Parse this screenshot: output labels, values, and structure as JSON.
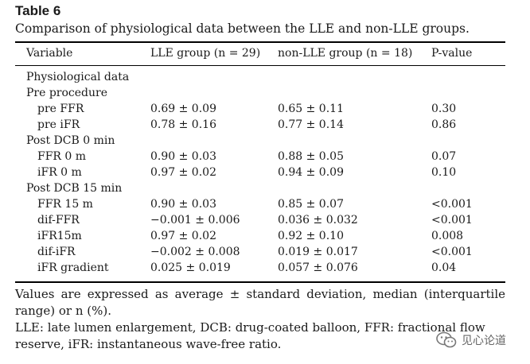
{
  "table": {
    "label": "Table 6",
    "caption": "Comparison of physiological data between the LLE and non-LLE groups.",
    "headers": [
      "Variable",
      "LLE group (n = 29)",
      "non-LLE group (n = 18)",
      "P-value"
    ],
    "rows": [
      {
        "variable": "Physiological data",
        "indent": false,
        "lle": "",
        "nonlle": "",
        "p": ""
      },
      {
        "variable": "Pre procedure",
        "indent": false,
        "lle": "",
        "nonlle": "",
        "p": ""
      },
      {
        "variable": "pre FFR",
        "indent": true,
        "lle": "0.69 ± 0.09",
        "nonlle": "0.65 ± 0.11",
        "p": "0.30"
      },
      {
        "variable": "pre iFR",
        "indent": true,
        "lle": "0.78 ± 0.16",
        "nonlle": "0.77 ± 0.14",
        "p": "0.86"
      },
      {
        "variable": "Post DCB 0 min",
        "indent": false,
        "lle": "",
        "nonlle": "",
        "p": ""
      },
      {
        "variable": "FFR 0 m",
        "indent": true,
        "lle": "0.90 ± 0.03",
        "nonlle": "0.88 ± 0.05",
        "p": "0.07"
      },
      {
        "variable": "iFR 0 m",
        "indent": true,
        "lle": "0.97 ± 0.02",
        "nonlle": "0.94 ± 0.09",
        "p": "0.10"
      },
      {
        "variable": "Post DCB 15 min",
        "indent": false,
        "lle": "",
        "nonlle": "",
        "p": ""
      },
      {
        "variable": "FFR 15 m",
        "indent": true,
        "lle": "0.90 ± 0.03",
        "nonlle": "0.85 ± 0.07",
        "p": "<0.001"
      },
      {
        "variable": "dif-FFR",
        "indent": true,
        "lle": "−0.001 ± 0.006",
        "nonlle": "0.036 ± 0.032",
        "p": "<0.001"
      },
      {
        "variable": "iFR15m",
        "indent": true,
        "lle": "0.97 ± 0.02",
        "nonlle": "0.92 ± 0.10",
        "p": "0.008"
      },
      {
        "variable": "dif-iFR",
        "indent": true,
        "lle": "−0.002 ± 0.008",
        "nonlle": "0.019 ± 0.017",
        "p": "<0.001"
      },
      {
        "variable": "iFR gradient",
        "indent": true,
        "lle": "0.025 ± 0.019",
        "nonlle": "0.057 ± 0.076",
        "p": "0.04"
      }
    ]
  },
  "notes": [
    "Values are expressed as average ± standard deviation, median (interquartile range) or n (%).",
    "LLE: late lumen enlargement, DCB: drug-coated balloon, FFR: fractional flow reserve, iFR: instantaneous wave-free ratio."
  ],
  "watermark": {
    "text": "见心论道",
    "icon": "wechat-icon"
  }
}
